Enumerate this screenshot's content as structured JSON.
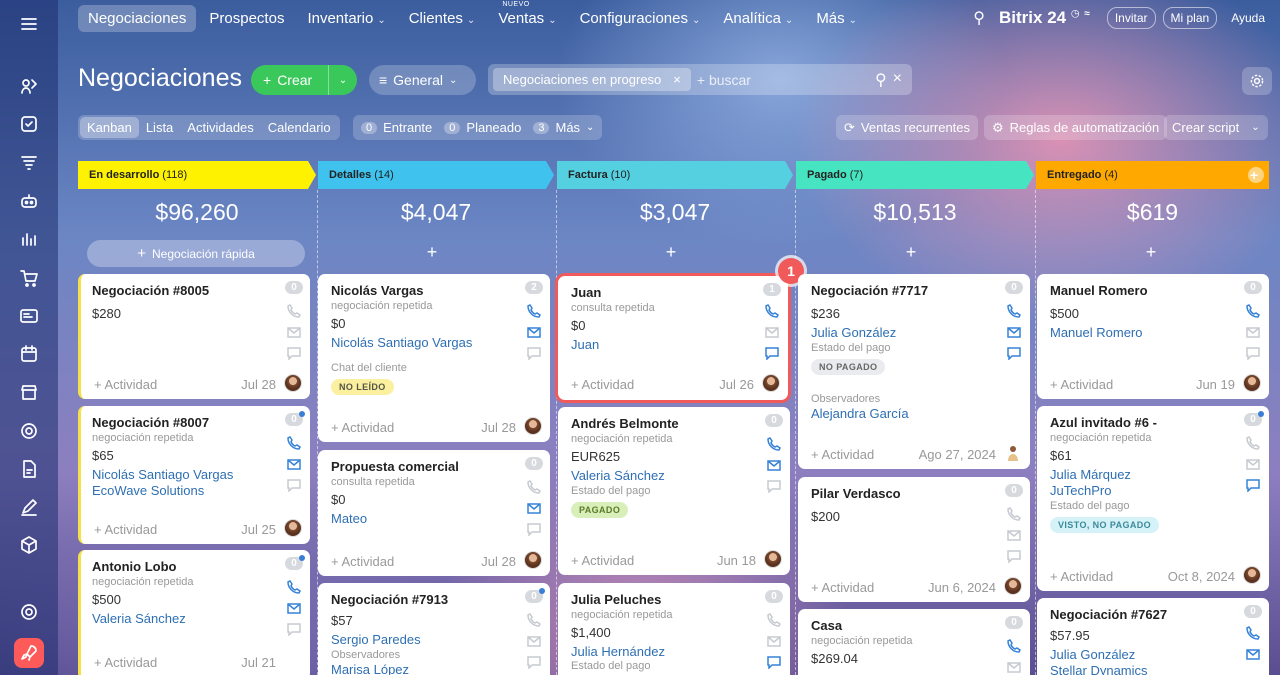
{
  "nav": {
    "items": [
      "Negociaciones",
      "Prospectos",
      "Inventario",
      "Clientes",
      "Ventas",
      "Configuraciones",
      "Analítica",
      "Más"
    ],
    "new_tag": "NUEVO",
    "brand": "Bitrix 24",
    "invite": "Invitar",
    "plan": "Mi plan",
    "help": "Ayuda"
  },
  "header": {
    "title": "Negociaciones",
    "create": "Crear",
    "general": "General",
    "filter_chip": "Negociaciones en progreso",
    "search_placeholder": "+ buscar"
  },
  "views": [
    "Kanban",
    "Lista",
    "Actividades",
    "Calendario"
  ],
  "counters": [
    {
      "n": "0",
      "label": "Entrante"
    },
    {
      "n": "0",
      "label": "Planeado"
    },
    {
      "n": "3",
      "label": "Más"
    }
  ],
  "actions": {
    "recurring": "Ventas recurrentes",
    "rules": "Reglas de automatización",
    "script": "Crear script"
  },
  "columns": [
    {
      "name": "En desarrollo",
      "count": "(118)",
      "sum": "$96,260",
      "color": "#fff200",
      "quick": "Negociación rápida"
    },
    {
      "name": "Detalles",
      "count": "(14)",
      "sum": "$4,047",
      "color": "#3fc3ee"
    },
    {
      "name": "Factura",
      "count": "(10)",
      "sum": "$3,047",
      "color": "#55d0e0"
    },
    {
      "name": "Pagado",
      "count": "(7)",
      "sum": "$10,513",
      "color": "#47e4c2"
    },
    {
      "name": "Entregado",
      "count": "(4)",
      "sum": "$619",
      "color": "#ffa900"
    }
  ],
  "card_common": {
    "activity": "+ Actividad"
  },
  "cards": {
    "c1a": {
      "title": "Negociación #8005",
      "amount": "$280",
      "n": "0",
      "date": "Jul 28"
    },
    "c1b": {
      "title": "Negociación #8007",
      "sub": "negociación repetida",
      "amount": "$65",
      "link1": "Nicolás Santiago Vargas",
      "link2": "EcoWave Solutions",
      "n": "0",
      "date": "Jul 25"
    },
    "c1c": {
      "title": "Antonio Lobo",
      "sub": "negociación repetida",
      "amount": "$500",
      "link1": "Valeria Sánchez",
      "n": "0",
      "date": "Jul 21"
    },
    "c2a": {
      "title": "Nicolás Vargas",
      "sub": "negociación repetida",
      "amount": "$0",
      "link1": "Nicolás Santiago Vargas",
      "label": "Chat del cliente",
      "badge": "NO LEÍDO",
      "n": "2",
      "date": "Jul 28"
    },
    "c2b": {
      "title": "Propuesta comercial",
      "sub": "consulta repetida",
      "amount": "$0",
      "link1": "Mateo",
      "n": "0",
      "date": "Jul 28"
    },
    "c2c": {
      "title": "Negociación #7913",
      "amount": "$57",
      "link1": "Sergio Paredes",
      "label": "Observadores",
      "link2": "Marisa López",
      "n": "0"
    },
    "c3a": {
      "title": "Juan",
      "sub": "consulta repetida",
      "amount": "$0",
      "link1": "Juan",
      "n": "1",
      "date": "Jul 26"
    },
    "c3b": {
      "title": "Andrés Belmonte",
      "sub": "negociación repetida",
      "amount": "EUR625",
      "link1": "Valeria Sánchez",
      "label": "Estado del pago",
      "badge": "PAGADO",
      "n": "0",
      "date": "Jun 18"
    },
    "c3c": {
      "title": "Julia Peluches",
      "sub": "negociación repetida",
      "amount": "$1,400",
      "link1": "Julia Hernández",
      "label": "Estado del pago",
      "n": "0"
    },
    "c4a": {
      "title": "Negociación #7717",
      "amount": "$236",
      "link1": "Julia González",
      "label": "Estado del pago",
      "badge": "NO PAGADO",
      "label2": "Observadores",
      "link2": "Alejandra García",
      "n": "0",
      "date": "Ago 27, 2024"
    },
    "c4b": {
      "title": "Pilar Verdasco",
      "amount": "$200",
      "n": "0",
      "date": "Jun 6, 2024"
    },
    "c4c": {
      "title": "Casa",
      "sub": "negociación repetida",
      "amount": "$269.04",
      "n": "0"
    },
    "c5a": {
      "title": "Manuel Romero",
      "amount": "$500",
      "link1": "Manuel Romero",
      "n": "0",
      "date": "Jun 19"
    },
    "c5b": {
      "title": "Azul invitado #6 -",
      "sub": "negociación repetida",
      "amount": "$61",
      "link1": "Julia Márquez",
      "link2": "JuTechPro",
      "label": "Estado del pago",
      "badge": "VISTO, NO PAGADO",
      "n": "0",
      "date": "Oct 8, 2024"
    },
    "c5c": {
      "title": "Negociación #7627",
      "amount": "$57.95",
      "link1": "Julia González",
      "link2": "Stellar Dynamics",
      "n": "0"
    }
  },
  "marker": "1"
}
